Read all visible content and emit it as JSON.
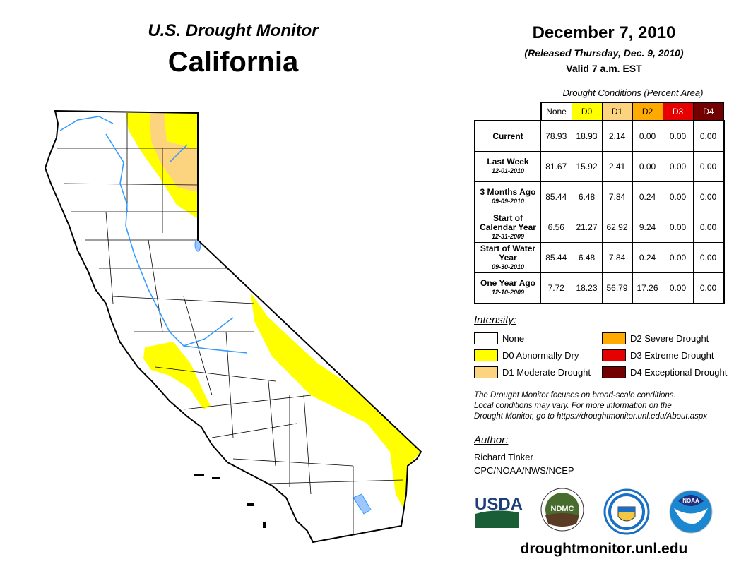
{
  "header": {
    "title": "U.S. Drought Monitor",
    "state": "California",
    "date": "December 7, 2010",
    "released": "(Released Thursday, Dec. 9, 2010)",
    "valid": "Valid 7 a.m. EST"
  },
  "table": {
    "caption": "Drought Conditions (Percent Area)",
    "columns": [
      "None",
      "D0",
      "D1",
      "D2",
      "D3",
      "D4"
    ],
    "column_colors": [
      "#ffffff",
      "#ffff00",
      "#fcd37f",
      "#ffaa00",
      "#e60000",
      "#730000"
    ],
    "rows": [
      {
        "label": "Current",
        "date": "",
        "values": [
          "78.93",
          "18.93",
          "2.14",
          "0.00",
          "0.00",
          "0.00"
        ]
      },
      {
        "label": "Last Week",
        "date": "12-01-2010",
        "values": [
          "81.67",
          "15.92",
          "2.41",
          "0.00",
          "0.00",
          "0.00"
        ]
      },
      {
        "label": "3 Months Ago",
        "date": "09-09-2010",
        "values": [
          "85.44",
          "6.48",
          "7.84",
          "0.24",
          "0.00",
          "0.00"
        ]
      },
      {
        "label": "Start of Calendar Year",
        "date": "12-31-2009",
        "values": [
          "6.56",
          "21.27",
          "62.92",
          "9.24",
          "0.00",
          "0.00"
        ]
      },
      {
        "label": "Start of Water Year",
        "date": "09-30-2010",
        "values": [
          "85.44",
          "6.48",
          "7.84",
          "0.24",
          "0.00",
          "0.00"
        ]
      },
      {
        "label": "One Year Ago",
        "date": "12-10-2009",
        "values": [
          "7.72",
          "18.23",
          "56.79",
          "17.26",
          "0.00",
          "0.00"
        ]
      }
    ]
  },
  "legend": {
    "title": "Intensity:",
    "items": [
      {
        "label": "None",
        "color": "#ffffff"
      },
      {
        "label": "D0 Abnormally Dry",
        "color": "#ffff00"
      },
      {
        "label": "D1 Moderate Drought",
        "color": "#fcd37f"
      },
      {
        "label": "D2 Severe Drought",
        "color": "#ffaa00"
      },
      {
        "label": "D3 Extreme Drought",
        "color": "#e60000"
      },
      {
        "label": "D4 Exceptional Drought",
        "color": "#730000"
      }
    ]
  },
  "note": [
    "The Drought Monitor focuses on broad-scale conditions.",
    "Local conditions may vary. For more information on the",
    "Drought Monitor, go to https://droughtmonitor.unl.edu/About.aspx"
  ],
  "author": {
    "label": "Author:",
    "name": "Richard Tinker",
    "org": "CPC/NOAA/NWS/NCEP"
  },
  "logos": {
    "usda": "USDA",
    "ndmc": "NDMC",
    "noaa": "NOAA",
    "doc": "Department of Commerce"
  },
  "url": "droughtmonitor.unl.edu"
}
